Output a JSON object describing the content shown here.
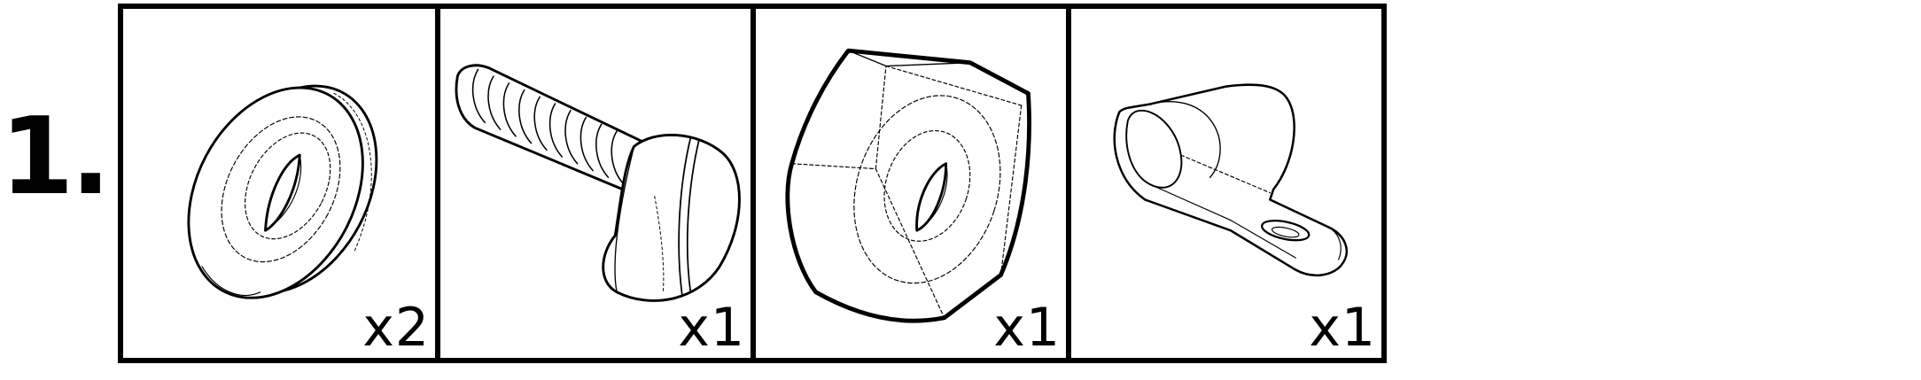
{
  "step": {
    "number": "1."
  },
  "parts": [
    {
      "id": "washer",
      "icon": "washer-icon",
      "quantity": "x2"
    },
    {
      "id": "screw",
      "icon": "slotted-screw-icon",
      "quantity": "x1"
    },
    {
      "id": "nut",
      "icon": "hex-nut-icon",
      "quantity": "x1"
    },
    {
      "id": "clamp",
      "icon": "cable-clamp-icon",
      "quantity": "x1"
    }
  ]
}
